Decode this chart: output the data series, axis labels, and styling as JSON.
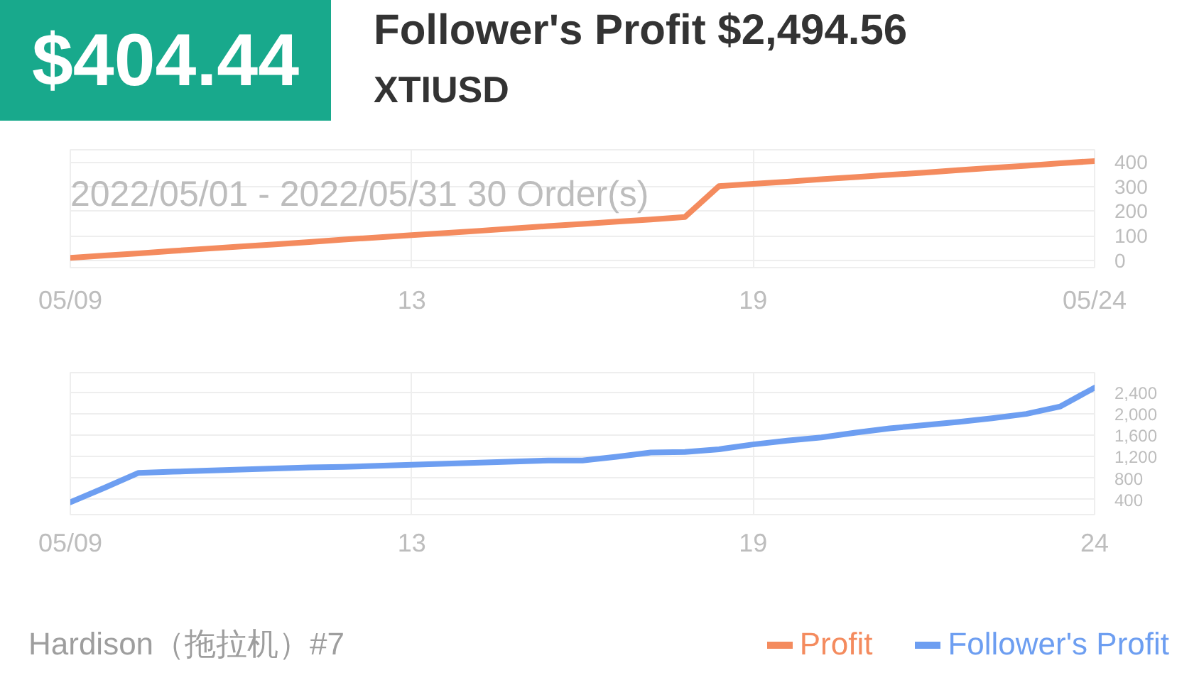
{
  "chart_data": [
    {
      "type": "line",
      "title": "Follower's Profit $2,494.56",
      "subtitle": "XTIUSD",
      "annotations": [
        "$404.44",
        "2022/05/01 - 2022/05/31  30 Order(s)",
        "Hardison（拖拉机）#7"
      ],
      "categories": [
        "05/09",
        null,
        null,
        null,
        null,
        null,
        null,
        null,
        null,
        null,
        "13",
        null,
        null,
        null,
        null,
        null,
        null,
        null,
        null,
        null,
        "19",
        null,
        null,
        null,
        null,
        null,
        null,
        null,
        null,
        null,
        "05/24"
      ],
      "series": [
        {
          "name": "Profit",
          "color": "#f48b5e",
          "values": [
            10,
            19,
            28,
            38,
            47,
            56,
            65,
            74,
            84,
            93,
            102,
            111,
            120,
            130,
            139,
            148,
            157,
            166,
            176,
            302,
            311,
            320,
            330,
            339,
            348,
            357,
            367,
            376,
            385,
            395,
            404
          ]
        }
      ],
      "ylim": [
        -30,
        450
      ],
      "yticks": [
        0,
        100,
        200,
        300,
        400
      ],
      "grid": true,
      "legend": "bottom right"
    },
    {
      "type": "line",
      "categories": [
        "05/09",
        null,
        null,
        null,
        null,
        null,
        null,
        null,
        null,
        null,
        "13",
        null,
        null,
        null,
        null,
        null,
        null,
        null,
        null,
        null,
        "19",
        null,
        null,
        null,
        null,
        null,
        null,
        null,
        null,
        null,
        "24"
      ],
      "series": [
        {
          "name": "Follower's Profit",
          "color": "#6d9ef1",
          "values": [
            350,
            620,
            900,
            920,
            940,
            960,
            980,
            1000,
            1010,
            1030,
            1050,
            1070,
            1090,
            1110,
            1130,
            1130,
            1200,
            1280,
            1290,
            1340,
            1430,
            1500,
            1560,
            1650,
            1730,
            1790,
            1850,
            1920,
            2000,
            2140,
            2490
          ]
        }
      ],
      "ylim": [
        120,
        2770
      ],
      "yticks": [
        400,
        800,
        {
          "value": 1200,
          "label": "1,200"
        },
        {
          "value": 1600,
          "label": "1,600"
        },
        {
          "value": 2000,
          "label": "2,000"
        },
        {
          "value": 2400,
          "label": "2,400"
        }
      ],
      "grid": true,
      "legend": "bottom right"
    }
  ]
}
